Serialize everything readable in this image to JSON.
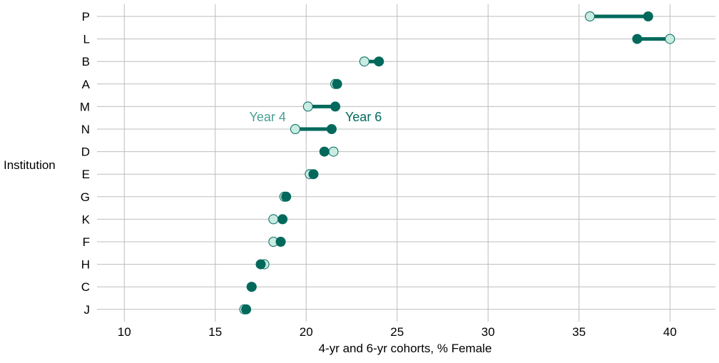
{
  "chart_data": {
    "type": "dumbbell",
    "title": "",
    "xlabel": "4-yr and 6-yr cohorts, % Female",
    "ylabel": "Institution",
    "xlim": [
      8.5,
      42.5
    ],
    "x_ticks": [
      10,
      15,
      20,
      25,
      30,
      35,
      40
    ],
    "grid": true,
    "categories": [
      "P",
      "L",
      "B",
      "A",
      "M",
      "N",
      "D",
      "E",
      "G",
      "K",
      "F",
      "H",
      "C",
      "J"
    ],
    "series": [
      {
        "name": "Year 4",
        "color": "#c8ebe2",
        "values": [
          35.6,
          40.0,
          23.2,
          21.6,
          20.1,
          19.4,
          21.5,
          20.2,
          18.8,
          18.2,
          18.2,
          17.7,
          17.0,
          16.6
        ]
      },
      {
        "name": "Year 6",
        "color": "#00695c",
        "values": [
          38.8,
          38.2,
          24.0,
          21.7,
          21.6,
          21.4,
          21.0,
          20.4,
          18.9,
          18.7,
          18.6,
          17.5,
          17.0,
          16.7
        ]
      }
    ],
    "annotations": [
      {
        "text": "Year 4",
        "color": "#4a9e92"
      },
      {
        "text": "Year 6",
        "color": "#00695c"
      }
    ]
  }
}
